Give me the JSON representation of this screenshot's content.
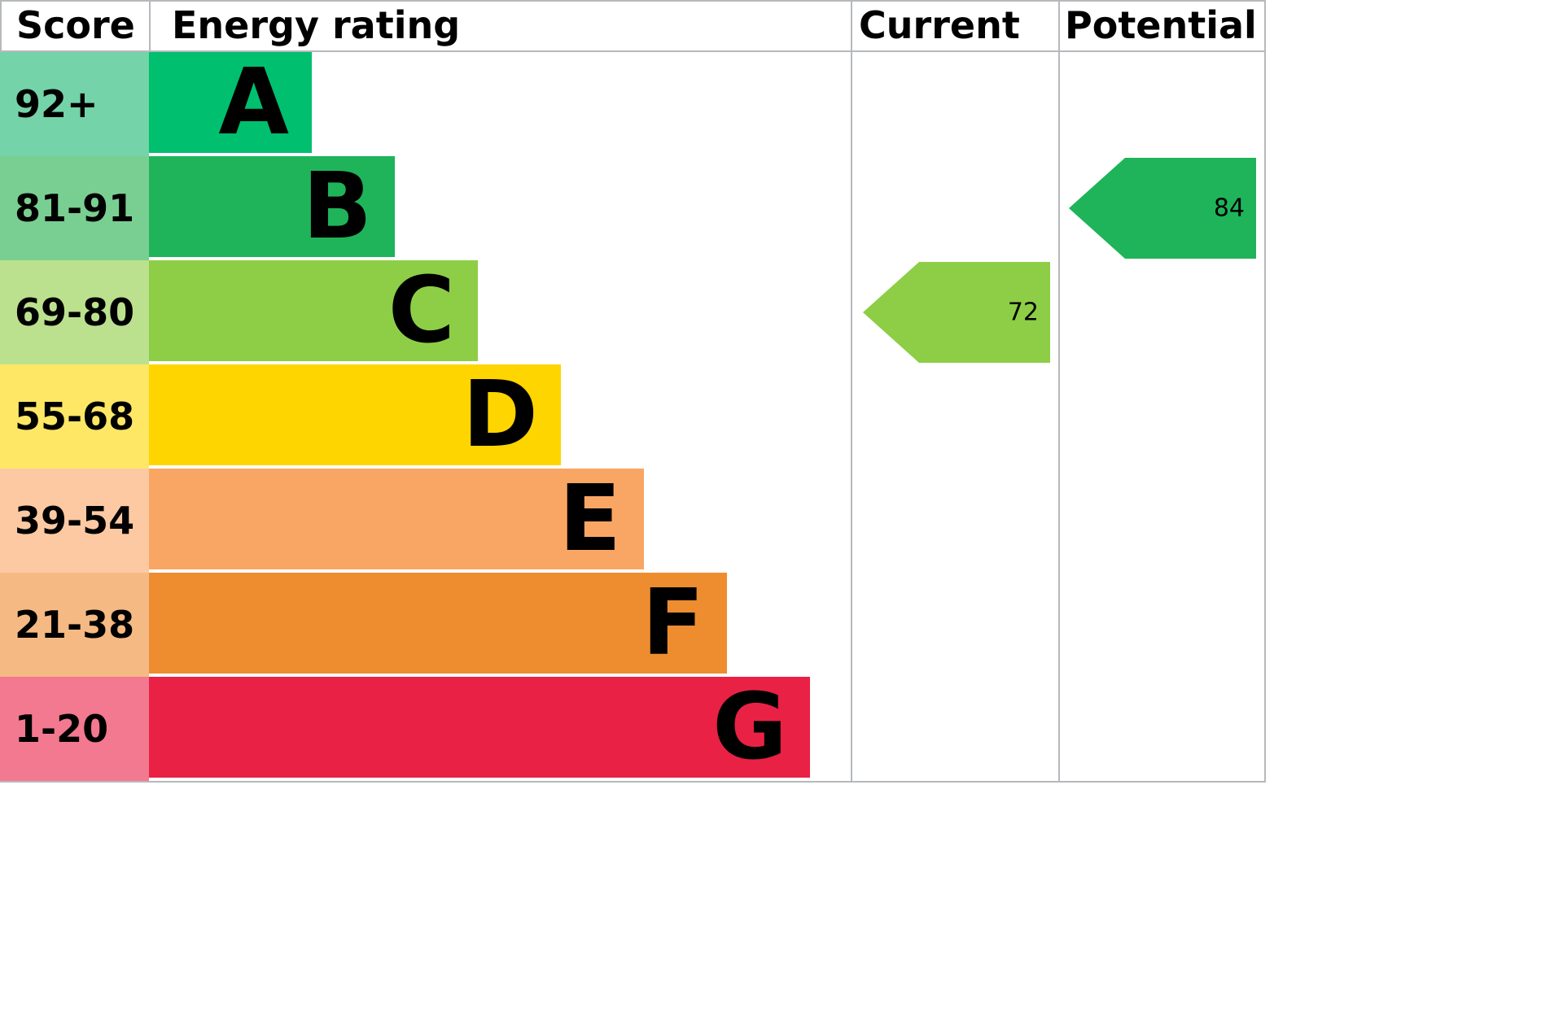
{
  "headers": {
    "score": "Score",
    "rating": "Energy rating",
    "current": "Current",
    "potential": "Potential"
  },
  "bands": [
    {
      "score": "92+",
      "letter": "A",
      "band_color": "#00bf6f",
      "tint_color": "#74d3a8"
    },
    {
      "score": "81-91",
      "letter": "B",
      "band_color": "#1fb45a",
      "tint_color": "#79cf92"
    },
    {
      "score": "69-80",
      "letter": "C",
      "band_color": "#8dce46",
      "tint_color": "#bce18e"
    },
    {
      "score": "55-68",
      "letter": "D",
      "band_color": "#ffd500",
      "tint_color": "#ffe766"
    },
    {
      "score": "39-54",
      "letter": "E",
      "band_color": "#f9a664",
      "tint_color": "#fcc9a2"
    },
    {
      "score": "21-38",
      "letter": "F",
      "band_color": "#ee8d30",
      "tint_color": "#f5ba83"
    },
    {
      "score": "1-20",
      "letter": "G",
      "band_color": "#e92145",
      "tint_color": "#f2798f"
    }
  ],
  "current": {
    "value": "72",
    "band": "C",
    "arrow_color": "#8dce46"
  },
  "potential": {
    "value": "84",
    "band": "B",
    "arrow_color": "#1fb45a"
  },
  "chart_data": {
    "type": "bar",
    "title": "Energy rating",
    "categories": [
      "A",
      "B",
      "C",
      "D",
      "E",
      "F",
      "G"
    ],
    "score_ranges": [
      "92+",
      "81-91",
      "69-80",
      "55-68",
      "39-54",
      "21-38",
      "1-20"
    ],
    "bar_lengths_relative": [
      1,
      2,
      3,
      4,
      5,
      6,
      7
    ],
    "bar_colors": [
      "#00bf6f",
      "#1fb45a",
      "#8dce46",
      "#ffd500",
      "#f9a664",
      "#ee8d30",
      "#e92145"
    ],
    "current": {
      "value": 72,
      "band": "C"
    },
    "potential": {
      "value": 84,
      "band": "B"
    },
    "grid": false,
    "legend_position": "none"
  }
}
